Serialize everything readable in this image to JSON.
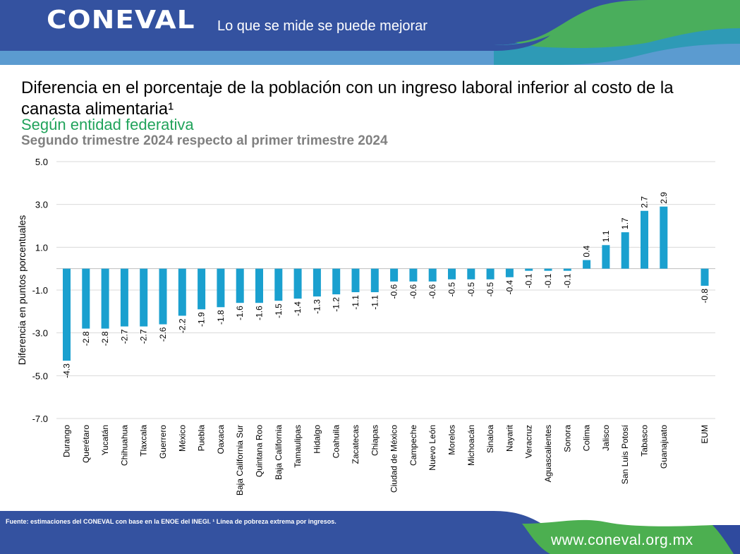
{
  "header": {
    "logo": "CONEVAL",
    "tagline": "Lo que se mide se puede mejorar"
  },
  "title": "Diferencia en el porcentaje de la población con un ingreso laboral inferior al costo de la canasta alimentaria¹",
  "subtitle": "Según entidad federativa",
  "period": "Segundo trimestre 2024 respecto al primer trimestre 2024",
  "footer": {
    "source": "Fuente: estimaciones del CONEVAL con base en la ENOE del INEGI. ¹ Línea de pobreza extrema por ingresos.",
    "website": "www.coneval.org.mx"
  },
  "colors": {
    "bar": "#1aa0cf",
    "header_blue": "#2f4a9e",
    "green": "#4caf50",
    "title_green": "#21a35b"
  },
  "chart_data": {
    "type": "bar",
    "ylabel": "Diferencia en puntos porcentuales",
    "ylim": [
      -7.0,
      5.0
    ],
    "yticks": [
      "5.0",
      "3.0",
      "1.0",
      "-1.0",
      "-3.0",
      "-5.0",
      "-7.0"
    ],
    "grid": true,
    "categories": [
      "Durango",
      "Querétaro",
      "Yucatán",
      "Chihuahua",
      "Tlaxcala",
      "Guerrero",
      "México",
      "Puebla",
      "Oaxaca",
      "Baja California Sur",
      "Quintana Roo",
      "Baja California",
      "Tamaulipas",
      "Hidalgo",
      "Coahuila",
      "Zacatecas",
      "Chiapas",
      "Ciudad de México",
      "Campeche",
      "Nuevo León",
      "Morelos",
      "Michoacán",
      "Sinaloa",
      "Nayarit",
      "Veracruz",
      "Aguascalientes",
      "Sonora",
      "Colima",
      "Jalisco",
      "San Luis Potosí",
      "Tabasco",
      "Guanajuato",
      "EUM"
    ],
    "values": [
      -4.3,
      -2.8,
      -2.8,
      -2.7,
      -2.7,
      -2.6,
      -2.2,
      -1.9,
      -1.8,
      -1.6,
      -1.6,
      -1.5,
      -1.4,
      -1.3,
      -1.2,
      -1.1,
      -1.1,
      -0.6,
      -0.6,
      -0.6,
      -0.5,
      -0.5,
      -0.5,
      -0.4,
      -0.1,
      -0.1,
      -0.1,
      0.4,
      1.1,
      1.7,
      2.7,
      2.9,
      -0.8
    ],
    "labels": [
      "-4.3",
      "-2.8",
      "-2.8",
      "-2.7",
      "-2.7",
      "-2.6",
      "-2.2",
      "-1.9",
      "-1.8",
      "-1.6",
      "-1.6",
      "-1.5",
      "-1.4",
      "-1.3",
      "-1.2",
      "-1.1",
      "-1.1",
      "-0.6",
      "-0.6",
      "-0.6",
      "-0.5",
      "-0.5",
      "-0.5",
      "-0.4",
      "-0.1",
      "-0.1",
      "-0.1",
      "0.4",
      "1.1",
      "1.7",
      "2.7",
      "2.9",
      "-0.8"
    ]
  }
}
